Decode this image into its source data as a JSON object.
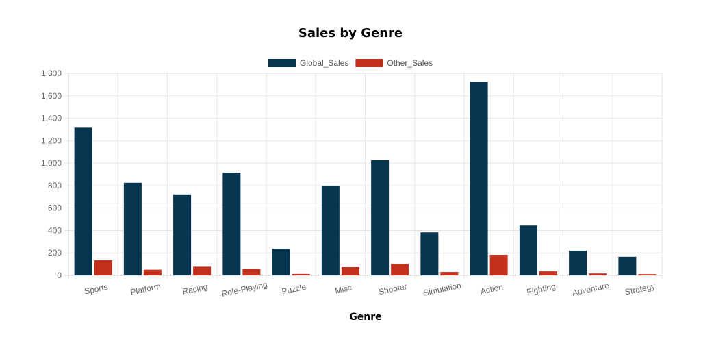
{
  "chart_data": {
    "type": "bar",
    "title": "Sales by Genre",
    "xlabel": "Genre",
    "ylabel": "",
    "categories": [
      "Sports",
      "Platform",
      "Racing",
      "Role-Playing",
      "Puzzle",
      "Misc",
      "Shooter",
      "Simulation",
      "Action",
      "Fighting",
      "Adventure",
      "Strategy"
    ],
    "series": [
      {
        "name": "Global_Sales",
        "color": "#073650",
        "values": [
          1316,
          825,
          721,
          913,
          236,
          796,
          1025,
          383,
          1723,
          444,
          220,
          166
        ]
      },
      {
        "name": "Other_Sales",
        "color": "#c3301b",
        "values": [
          134,
          51,
          77,
          58,
          13,
          73,
          101,
          30,
          183,
          36,
          17,
          11
        ]
      }
    ],
    "ylim": [
      0,
      1800
    ],
    "yticks": [
      0,
      200,
      400,
      600,
      800,
      1000,
      1200,
      1400,
      1600,
      1800
    ],
    "ytick_labels": [
      "0",
      "200",
      "400",
      "600",
      "800",
      "1,000",
      "1,200",
      "1,400",
      "1,600",
      "1,800"
    ],
    "grid": true,
    "legend_position": "top-center"
  }
}
